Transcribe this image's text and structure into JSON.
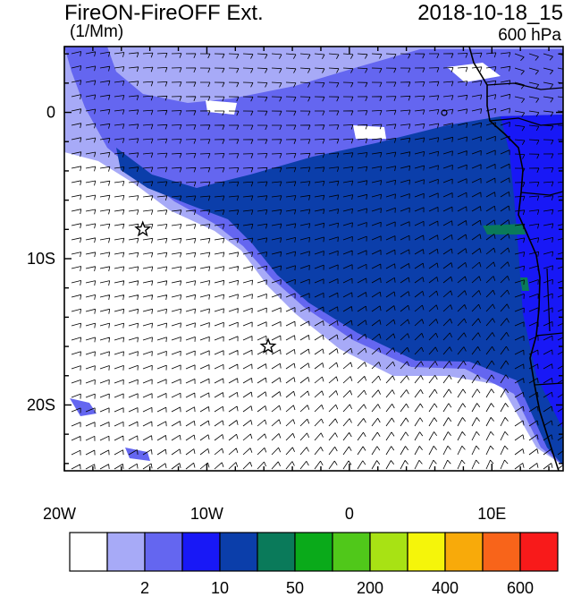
{
  "header": {
    "title": "FireON-FireOFF Ext.",
    "datetime": "2018-10-18_15",
    "units": "(1/Mm)",
    "level": "600 hPa"
  },
  "map": {
    "lon_range": [
      -20,
      15
    ],
    "lat_range": [
      -24.5,
      4.5
    ],
    "x_ticks": [
      {
        "value": -20,
        "label": "20W"
      },
      {
        "value": -10,
        "label": "10W"
      },
      {
        "value": 0,
        "label": "0"
      },
      {
        "value": 10,
        "label": "10E"
      }
    ],
    "y_ticks": [
      {
        "value": 0,
        "label": "0"
      },
      {
        "value": -10,
        "label": "10S"
      },
      {
        "value": -20,
        "label": "20S"
      }
    ],
    "markers": [
      {
        "name": "star",
        "lon": -14.5,
        "lat": -8.0
      },
      {
        "name": "star",
        "lon": -5.7,
        "lat": -16.0
      }
    ]
  },
  "colorbar": {
    "colors": [
      "#ffffff",
      "#a7aaf7",
      "#6466f0",
      "#1818f6",
      "#0b3eaa",
      "#0a7a5a",
      "#0aaa1a",
      "#50c81a",
      "#a8e214",
      "#f5f50a",
      "#f8aa0a",
      "#f8641a",
      "#f81a1a"
    ],
    "labels": [
      {
        "boundary": 1,
        "text": "2"
      },
      {
        "boundary": 3,
        "text": "10"
      },
      {
        "boundary": 5,
        "text": "50"
      },
      {
        "boundary": 7,
        "text": "200"
      },
      {
        "boundary": 9,
        "text": "400"
      },
      {
        "boundary": 11,
        "text": "600"
      }
    ]
  }
}
